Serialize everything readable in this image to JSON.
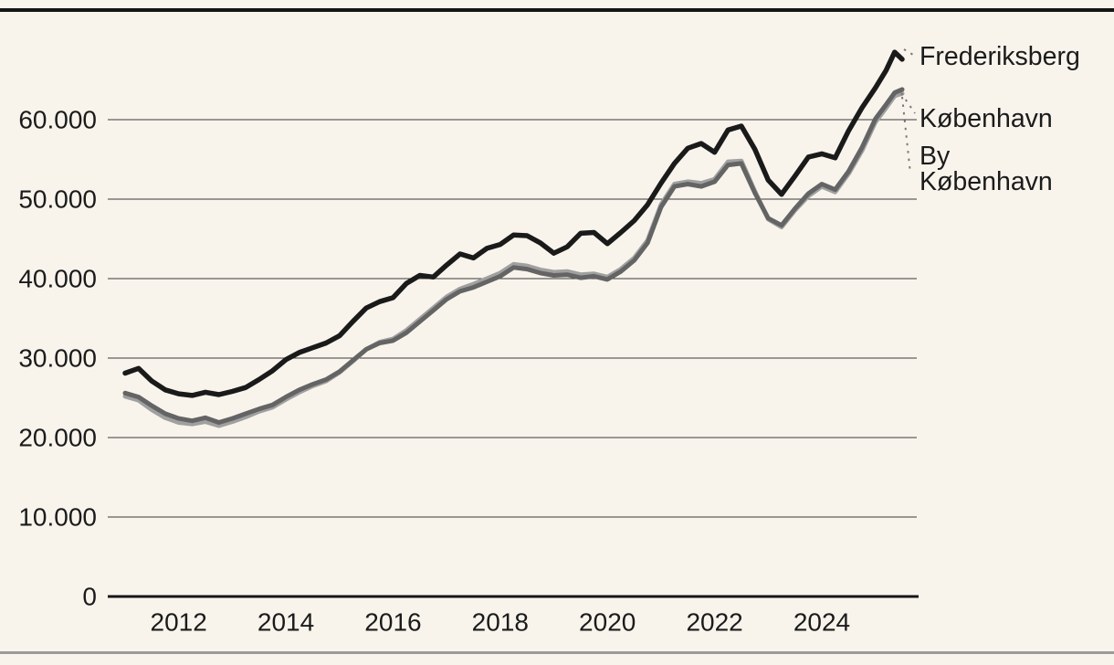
{
  "page": {
    "background_color": "#f8f4ec",
    "top_border_color": "#151515",
    "bottom_border_color": "#9a9a9a"
  },
  "chart_data": {
    "type": "line",
    "title": "",
    "xlabel": "",
    "ylabel": "",
    "grid": "horizontal",
    "legend_position": "right-edge-annotations",
    "x_range": [
      2011,
      2025.5
    ],
    "ylim": [
      0,
      70000
    ],
    "colors": {
      "grid": "#3a3a3a",
      "axis": "#161616",
      "tick_label": "#1b1b1b",
      "annotation_text": "#1b1b1b",
      "leader": "#7a7a7a"
    },
    "y_ticks": [
      {
        "v": 0,
        "label": "0"
      },
      {
        "v": 10000,
        "label": "10.000"
      },
      {
        "v": 20000,
        "label": "20.000"
      },
      {
        "v": 30000,
        "label": "30.000"
      },
      {
        "v": 40000,
        "label": "40.000"
      },
      {
        "v": 50000,
        "label": "50.000"
      },
      {
        "v": 60000,
        "label": "60.000"
      }
    ],
    "x_ticks": [
      {
        "v": 2012,
        "label": "2012"
      },
      {
        "v": 2014,
        "label": "2014"
      },
      {
        "v": 2016,
        "label": "2016"
      },
      {
        "v": 2018,
        "label": "2018"
      },
      {
        "v": 2020,
        "label": "2020"
      },
      {
        "v": 2022,
        "label": "2022"
      },
      {
        "v": 2024,
        "label": "2024"
      }
    ],
    "x": [
      2011,
      2011.25,
      2011.5,
      2011.75,
      2012,
      2012.25,
      2012.5,
      2012.75,
      2013,
      2013.25,
      2013.5,
      2013.75,
      2014,
      2014.25,
      2014.5,
      2014.75,
      2015,
      2015.25,
      2015.5,
      2015.75,
      2016,
      2016.25,
      2016.5,
      2016.75,
      2017,
      2017.25,
      2017.5,
      2017.75,
      2018,
      2018.25,
      2018.5,
      2018.75,
      2019,
      2019.25,
      2019.5,
      2019.75,
      2020,
      2020.25,
      2020.5,
      2020.75,
      2021,
      2021.25,
      2021.5,
      2021.75,
      2022,
      2022.25,
      2022.5,
      2022.75,
      2023,
      2023.25,
      2023.5,
      2023.75,
      2024,
      2024.25,
      2024.5,
      2024.75,
      2025,
      2025.2,
      2025.36,
      2025.5
    ],
    "series": [
      {
        "name": "Frederiksberg",
        "color": "#1a1a1a",
        "width": 5.5,
        "values": [
          28100,
          28700,
          27100,
          26000,
          25500,
          25300,
          25700,
          25400,
          25800,
          26300,
          27300,
          28400,
          29800,
          30700,
          31300,
          31900,
          32800,
          34600,
          36300,
          37100,
          37600,
          39400,
          40400,
          40200,
          41700,
          43100,
          42600,
          43800,
          44300,
          45500,
          45400,
          44500,
          43200,
          44000,
          45700,
          45800,
          44400,
          45800,
          47300,
          49300,
          52000,
          54500,
          56400,
          57000,
          55900,
          58700,
          59200,
          56300,
          52400,
          50600,
          52900,
          55300,
          55700,
          55200,
          58600,
          61500,
          64000,
          66200,
          68500,
          67600
        ]
      },
      {
        "name": "København",
        "color": "#646464",
        "width": 5,
        "values": [
          25600,
          25100,
          24000,
          23000,
          22400,
          22100,
          22500,
          21900,
          22400,
          23000,
          23600,
          24100,
          25100,
          26000,
          26700,
          27300,
          28300,
          29700,
          31100,
          31900,
          32200,
          33200,
          34600,
          36000,
          37400,
          38400,
          38900,
          39600,
          40300,
          41400,
          41200,
          40700,
          40400,
          40500,
          40100,
          40300,
          39900,
          40900,
          42300,
          44500,
          49000,
          51600,
          51900,
          51600,
          52200,
          54300,
          54500,
          50800,
          47600,
          46700,
          48800,
          50700,
          51900,
          51200,
          53500,
          56500,
          60100,
          61900,
          63400,
          63800
        ]
      },
      {
        "name": "By København",
        "color": "#a0a0a0",
        "width": 5,
        "values": [
          25200,
          24700,
          23500,
          22500,
          21900,
          21700,
          22000,
          21500,
          22000,
          22600,
          23300,
          23800,
          24800,
          25700,
          26500,
          27100,
          28200,
          29600,
          31100,
          32000,
          32400,
          33500,
          34900,
          36300,
          37700,
          38700,
          39300,
          40000,
          40700,
          41800,
          41600,
          41100,
          40800,
          40900,
          40500,
          40600,
          40200,
          41200,
          42600,
          44800,
          49300,
          51900,
          52200,
          52000,
          52500,
          54700,
          54800,
          51000,
          47500,
          46500,
          48600,
          50400,
          51600,
          50900,
          53200,
          56100,
          59700,
          61500,
          63000,
          63300
        ]
      }
    ],
    "annotations": [
      {
        "lines": [
          "Frederiksberg"
        ],
        "x": 1007,
        "y": 62,
        "lh": 28,
        "leader": [
          990,
          54,
          1000,
          60
        ]
      },
      {
        "lines": [
          "København"
        ],
        "x": 1007,
        "y": 130,
        "lh": 28,
        "leader": [
          987,
          102,
          1002,
          124
        ]
      },
      {
        "lines": [
          "By",
          "København"
        ],
        "x": 1007,
        "y": 171,
        "lh": 28,
        "leader": [
          988,
          106,
          997,
          190
        ]
      }
    ]
  }
}
